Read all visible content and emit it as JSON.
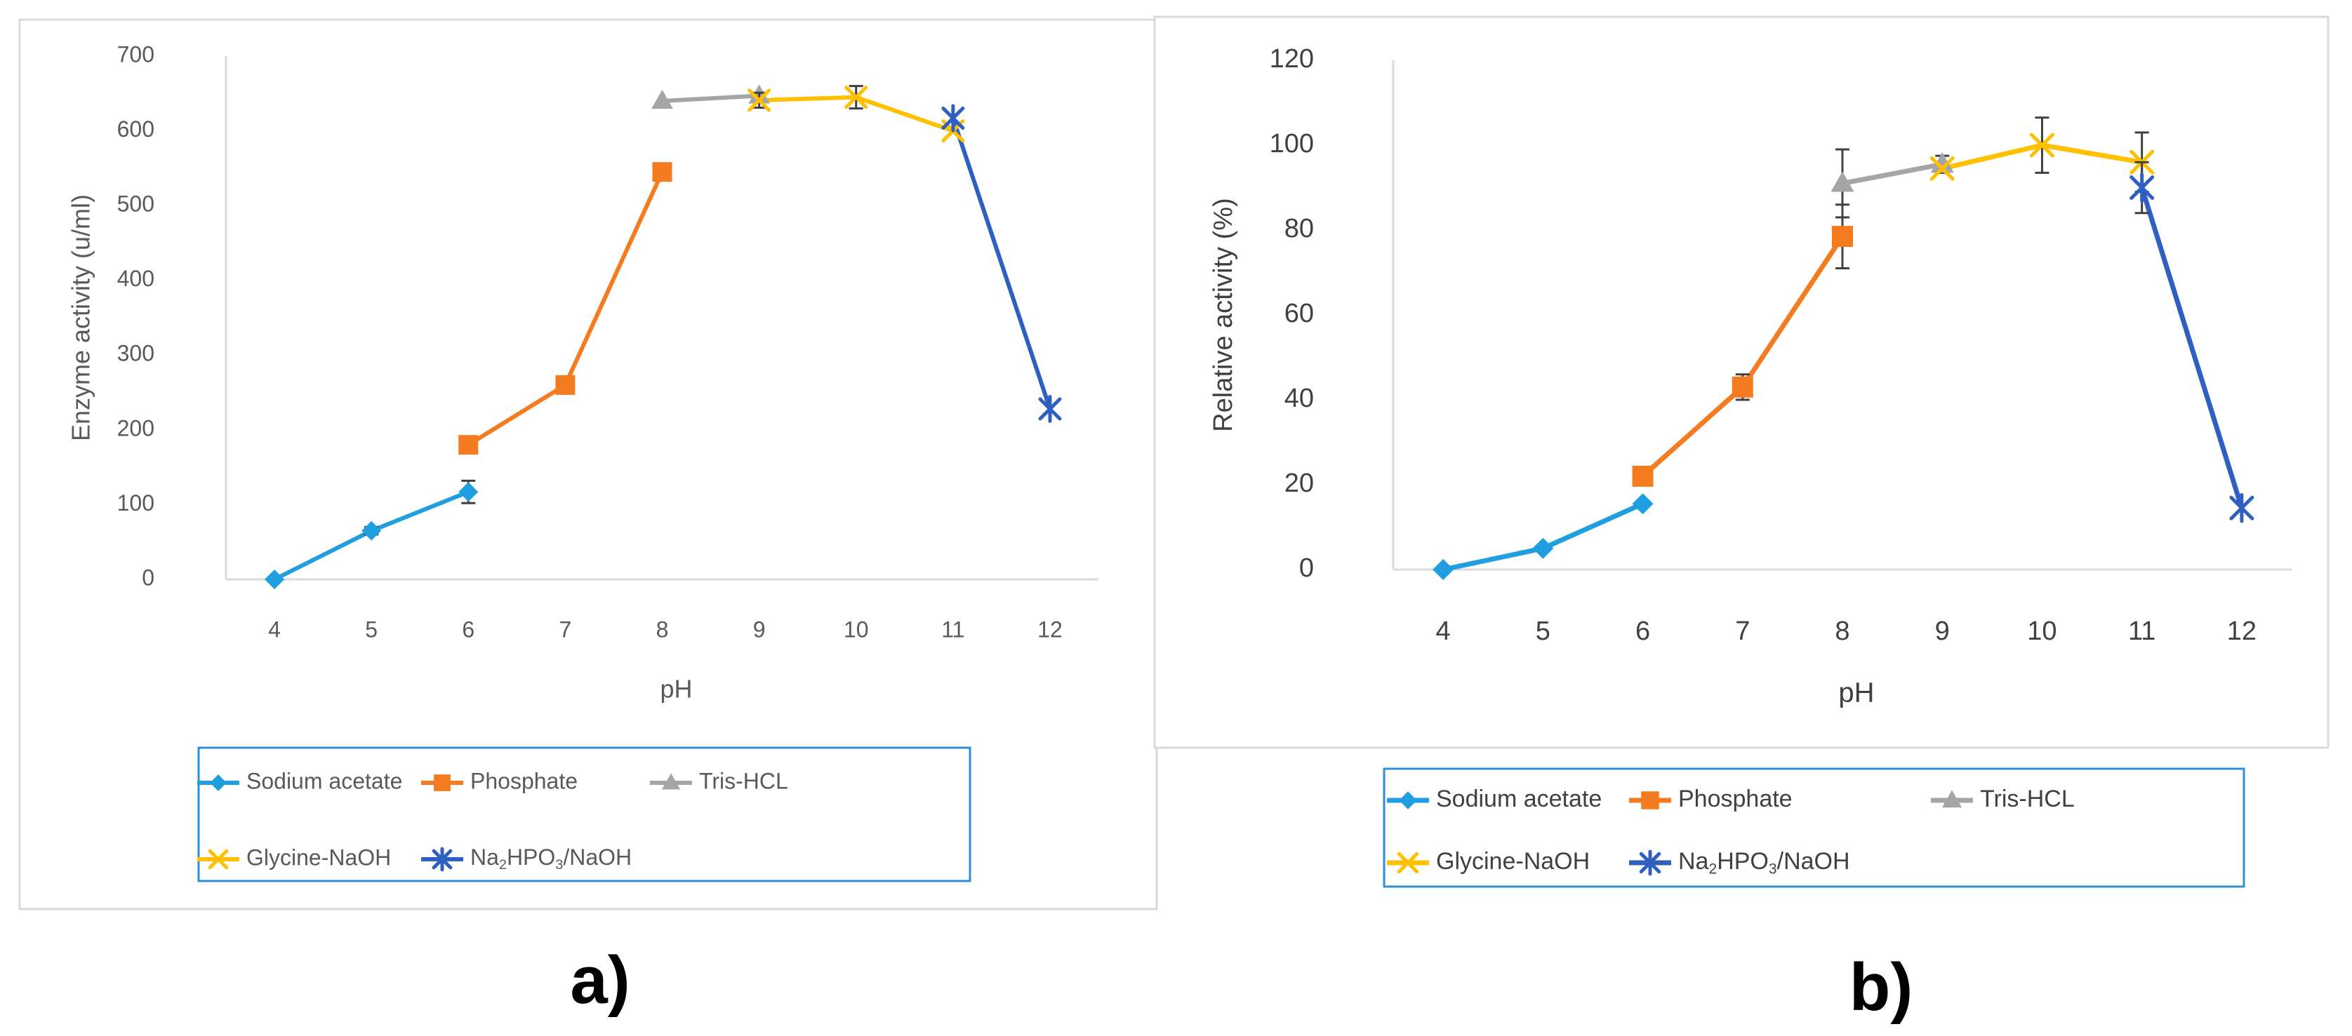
{
  "chart_data": [
    {
      "type": "line",
      "panel_label": "a)",
      "xlabel": "pH",
      "ylabel": "Enzyme activity (u/ml)",
      "ylim": [
        0,
        700
      ],
      "yticks": [
        0,
        100,
        200,
        300,
        400,
        500,
        600,
        700
      ],
      "categories": [
        "4",
        "5",
        "6",
        "7",
        "8",
        "9",
        "10",
        "11",
        "12"
      ],
      "legend_position": "bottom",
      "series": [
        {
          "name": "Sodium acetate",
          "color": "#1f9ee0",
          "marker": "diamond",
          "x": [
            4,
            5,
            6
          ],
          "y": [
            0,
            65,
            117
          ],
          "err": [
            0,
            5,
            15
          ]
        },
        {
          "name": "Phosphate",
          "color": "#f47b20",
          "marker": "square",
          "x": [
            6,
            7,
            8
          ],
          "y": [
            180,
            260,
            545
          ],
          "err": [
            0,
            10,
            10
          ]
        },
        {
          "name": "Tris-HCL",
          "color": "#a5a5a5",
          "marker": "triangle",
          "x": [
            8,
            9
          ],
          "y": [
            640,
            647
          ],
          "err": [
            0,
            0
          ]
        },
        {
          "name": "Glycine-NaOH",
          "color": "#ffc000",
          "marker": "x",
          "x": [
            9,
            10,
            11
          ],
          "y": [
            641,
            645,
            600
          ],
          "err": [
            10,
            15,
            0
          ]
        },
        {
          "name": "Na2HPO3/NaOH",
          "color": "#2e5fc1",
          "marker": "star",
          "x": [
            11,
            12
          ],
          "y": [
            617,
            228
          ],
          "err": [
            0,
            0
          ]
        }
      ]
    },
    {
      "type": "line",
      "panel_label": "b)",
      "xlabel": "pH",
      "ylabel": "Relative activity (%)",
      "ylim": [
        0,
        120
      ],
      "yticks": [
        0,
        20,
        40,
        60,
        80,
        100,
        120
      ],
      "categories": [
        "4",
        "5",
        "6",
        "7",
        "8",
        "9",
        "10",
        "11",
        "12"
      ],
      "legend_position": "bottom",
      "series": [
        {
          "name": "Sodium acetate",
          "color": "#1f9ee0",
          "marker": "diamond",
          "x": [
            4,
            5,
            6
          ],
          "y": [
            0,
            5,
            15.5
          ],
          "err": [
            0,
            0,
            0
          ]
        },
        {
          "name": "Phosphate",
          "color": "#f47b20",
          "marker": "square",
          "x": [
            6,
            7,
            8
          ],
          "y": [
            22,
            43,
            78.5
          ],
          "err": [
            0,
            3,
            7.5
          ]
        },
        {
          "name": "Tris-HCL",
          "color": "#a5a5a5",
          "marker": "triangle",
          "x": [
            8,
            9
          ],
          "y": [
            91,
            95.5
          ],
          "err": [
            8,
            2
          ]
        },
        {
          "name": "Glycine-NaOH",
          "color": "#ffc000",
          "marker": "x",
          "x": [
            9,
            10,
            11
          ],
          "y": [
            94.5,
            100,
            96
          ],
          "err": [
            0,
            6.5,
            7
          ]
        },
        {
          "name": "Na2HPO3/NaOH",
          "color": "#2e5fc1",
          "marker": "star",
          "x": [
            11,
            12
          ],
          "y": [
            90,
            14.5
          ],
          "err": [
            6,
            0
          ]
        }
      ]
    }
  ]
}
